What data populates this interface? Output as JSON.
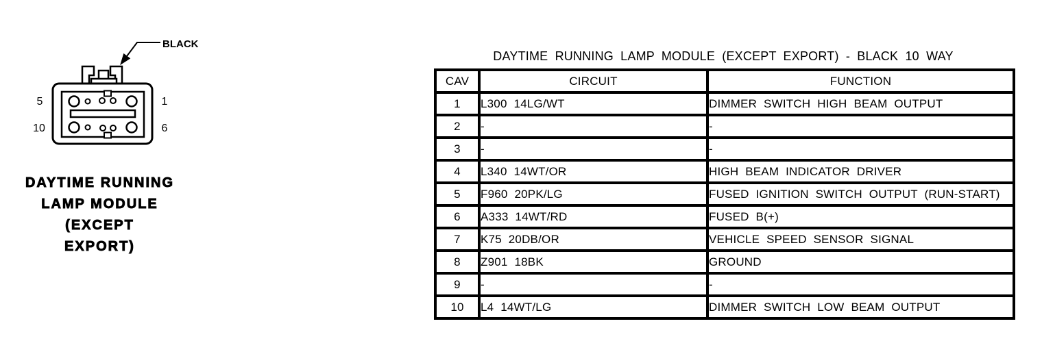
{
  "page": {
    "background": "#ffffff",
    "ink_color": "#000000"
  },
  "connector": {
    "color_label": "BLACK",
    "pin_labels": {
      "top_left": "5",
      "top_right": "1",
      "bottom_left": "10",
      "bottom_right": "6"
    },
    "caption_lines": [
      "DAYTIME RUNNING",
      "LAMP MODULE",
      "(EXCEPT",
      "EXPORT)"
    ]
  },
  "table": {
    "title": "DAYTIME RUNNING LAMP MODULE (EXCEPT EXPORT) - BLACK 10 WAY",
    "headers": [
      "CAV",
      "CIRCUIT",
      "FUNCTION"
    ],
    "rows": [
      [
        "1",
        "L300 14LG/WT",
        "DIMMER SWITCH HIGH BEAM OUTPUT"
      ],
      [
        "2",
        "-",
        "-"
      ],
      [
        "3",
        "-",
        "-"
      ],
      [
        "4",
        "L340 14WT/OR",
        "HIGH BEAM INDICATOR DRIVER"
      ],
      [
        "5",
        "F960 20PK/LG",
        "FUSED IGNITION SWITCH OUTPUT (RUN-START)"
      ],
      [
        "6",
        "A333 14WT/RD",
        "FUSED B(+)"
      ],
      [
        "7",
        "K75 20DB/OR",
        "VEHICLE SPEED SENSOR SIGNAL"
      ],
      [
        "8",
        "Z901 18BK",
        "GROUND"
      ],
      [
        "9",
        "-",
        "-"
      ],
      [
        "10",
        "L4 14WT/LG",
        "DIMMER SWITCH LOW BEAM OUTPUT"
      ]
    ]
  }
}
